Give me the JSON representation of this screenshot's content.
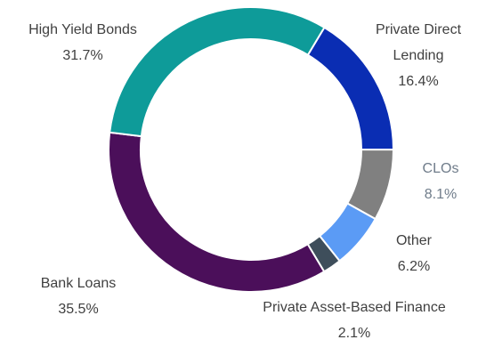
{
  "chart_data": {
    "type": "donut",
    "categories": [
      "Private Direct Lending",
      "CLOs",
      "Other",
      "Private Asset-Based Finance",
      "Bank Loans",
      "High Yield Bonds"
    ],
    "values": [
      16.4,
      8.1,
      6.2,
      2.1,
      35.5,
      31.7
    ],
    "value_labels": [
      "16.4%",
      "8.1%",
      "6.2%",
      "2.1%",
      "35.5%",
      "31.7%"
    ],
    "colors": [
      "#0a2db3",
      "#808080",
      "#5b9bf5",
      "#3e4e5b",
      "#4b0f5a",
      "#0e9b99"
    ]
  }
}
